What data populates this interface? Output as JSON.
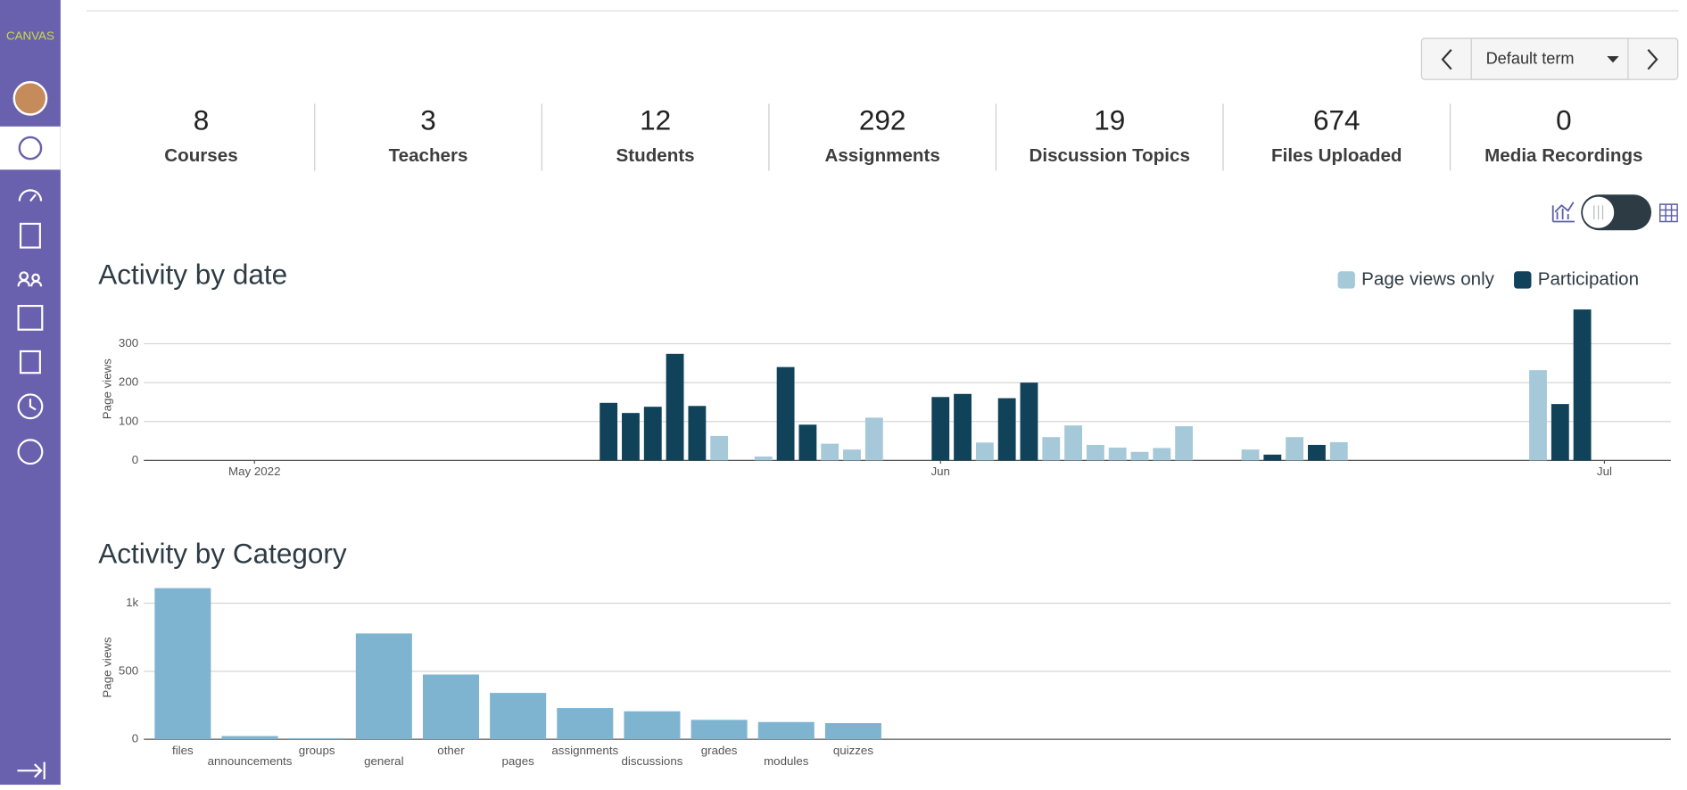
{
  "sidebar": {
    "logo": "CANVAS"
  },
  "term_selector": {
    "label": "Default term"
  },
  "stats": [
    {
      "value": 8,
      "label": "Courses"
    },
    {
      "value": 3,
      "label": "Teachers"
    },
    {
      "value": 12,
      "label": "Students"
    },
    {
      "value": 292,
      "label": "Assignments"
    },
    {
      "value": 19,
      "label": "Discussion Topics"
    },
    {
      "value": 674,
      "label": "Files Uploaded"
    },
    {
      "value": 0,
      "label": "Media Recordings"
    }
  ],
  "chart_data": [
    {
      "type": "bar",
      "title": "Activity by date",
      "y_label": "Page views",
      "x": [
        "2022-05-17",
        "2022-05-18",
        "2022-05-19",
        "2022-05-20",
        "2022-05-21",
        "2022-05-22",
        "2022-05-24",
        "2022-05-25",
        "2022-05-26",
        "2022-05-27",
        "2022-05-28",
        "2022-05-29",
        "2022-06-01",
        "2022-06-02",
        "2022-06-03",
        "2022-06-04",
        "2022-06-05",
        "2022-06-06",
        "2022-06-07",
        "2022-06-08",
        "2022-06-09",
        "2022-06-10",
        "2022-06-11",
        "2022-06-12",
        "2022-06-15",
        "2022-06-16",
        "2022-06-17",
        "2022-06-18",
        "2022-06-19",
        "2022-06-28",
        "2022-06-29",
        "2022-06-30"
      ],
      "series": [
        {
          "name": "Page views only",
          "color": "#a6c9da",
          "values": [
            null,
            null,
            null,
            null,
            null,
            63,
            10,
            null,
            null,
            43,
            28,
            110,
            null,
            null,
            46,
            null,
            null,
            60,
            90,
            40,
            33,
            22,
            32,
            88,
            28,
            null,
            60,
            null,
            47,
            232,
            null,
            null
          ]
        },
        {
          "name": "Participation",
          "color": "#10425a",
          "values": [
            148,
            122,
            138,
            274,
            140,
            null,
            null,
            240,
            92,
            null,
            null,
            null,
            163,
            171,
            null,
            160,
            200,
            null,
            null,
            null,
            null,
            null,
            null,
            null,
            null,
            15,
            null,
            40,
            null,
            null,
            145,
            388
          ]
        }
      ],
      "xlim": [
        "2022-04-26",
        "2022-07-04"
      ],
      "xticks": [
        {
          "value": "2022-05-01",
          "label": "May 2022"
        },
        {
          "value": "2022-06-01",
          "label": "Jun"
        },
        {
          "value": "2022-07-01",
          "label": "Jul"
        }
      ],
      "ylim": [
        0,
        390
      ],
      "yticks": [
        0,
        100,
        200,
        300
      ],
      "grid": true,
      "legend": "top-right"
    },
    {
      "type": "bar",
      "title": "Activity by Category",
      "y_label": "Page views",
      "categories": [
        "files",
        "announcements",
        "groups",
        "general",
        "other",
        "pages",
        "assignments",
        "discussions",
        "grades",
        "modules",
        "quizzes"
      ],
      "values": [
        1111,
        24,
        8,
        778,
        476,
        341,
        230,
        206,
        143,
        127,
        119
      ],
      "color": "#7fb4d0",
      "ylim": [
        0,
        1120
      ],
      "yticks": [
        0,
        500,
        {
          "value": 1000,
          "label": "1k"
        }
      ],
      "grid": true
    }
  ]
}
